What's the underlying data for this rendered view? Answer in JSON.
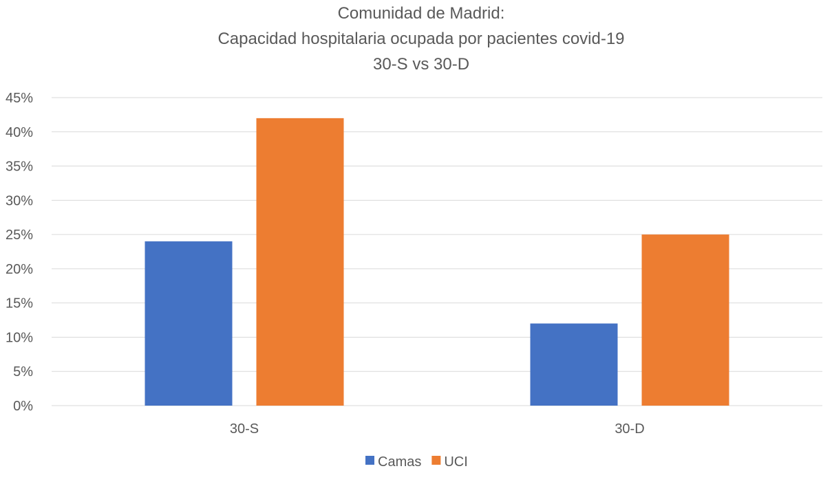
{
  "chart_data": {
    "type": "bar",
    "title": [
      "Comunidad de Madrid:",
      "Capacidad hospitalaria ocupada por pacientes covid-19",
      "30-S vs 30-D"
    ],
    "categories": [
      "30-S",
      "30-D"
    ],
    "series": [
      {
        "name": "Camas",
        "values": [
          24,
          12
        ],
        "color": "#4472C4"
      },
      {
        "name": "UCI",
        "values": [
          42,
          25
        ],
        "color": "#ED7D31"
      }
    ],
    "ylim": [
      0,
      45
    ],
    "yticks": [
      0,
      5,
      10,
      15,
      20,
      25,
      30,
      35,
      40,
      45
    ],
    "ytick_format": "percent",
    "grid": true,
    "legend": "bottom"
  }
}
